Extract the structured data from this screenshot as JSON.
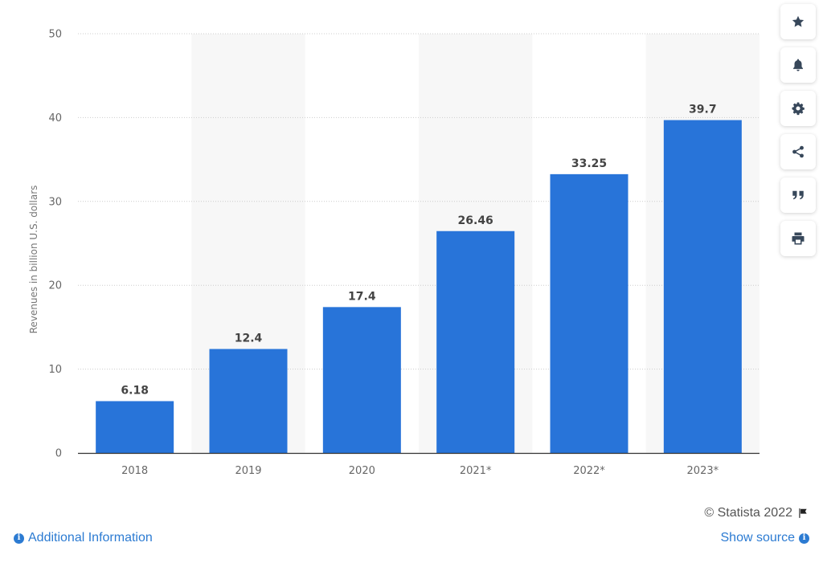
{
  "chart_data": {
    "type": "bar",
    "categories": [
      "2018",
      "2019",
      "2020",
      "2021*",
      "2022*",
      "2023*"
    ],
    "values": [
      6.18,
      12.4,
      17.4,
      26.46,
      33.25,
      39.7
    ],
    "value_labels": [
      "6.18",
      "12.4",
      "17.4",
      "26.46",
      "33.25",
      "39.7"
    ],
    "ylabel": "Revenues in billion U.S. dollars",
    "ylim": [
      0,
      50
    ],
    "yticks": [
      0,
      10,
      20,
      30,
      40,
      50
    ],
    "grid": true,
    "bar_color": "#2874d9",
    "alt_band_color": "#f7f7f7"
  },
  "toolbar": {
    "buttons": [
      {
        "name": "favorite-button",
        "icon": "star-icon"
      },
      {
        "name": "notification-button",
        "icon": "bell-icon"
      },
      {
        "name": "settings-button",
        "icon": "gear-icon"
      },
      {
        "name": "share-button",
        "icon": "share-icon"
      },
      {
        "name": "cite-button",
        "icon": "quote-icon"
      },
      {
        "name": "print-button",
        "icon": "print-icon"
      }
    ],
    "icon_color": "#37475a"
  },
  "footer": {
    "copyright": "© Statista 2022",
    "additional_info": "Additional Information",
    "show_source": "Show source",
    "link_color": "#2c7bd2"
  }
}
